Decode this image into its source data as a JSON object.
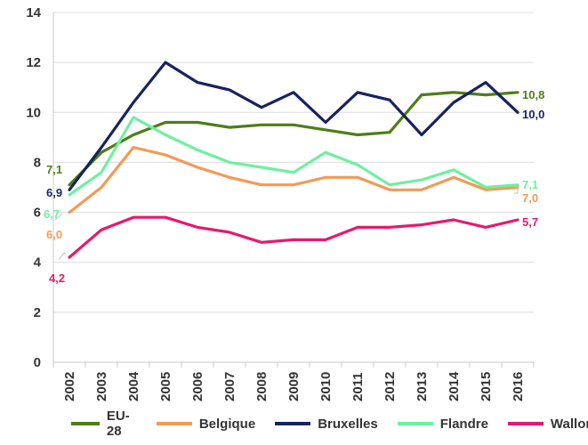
{
  "chart_data": {
    "type": "line",
    "categories": [
      "2002",
      "2003",
      "2004",
      "2005",
      "2006",
      "2007",
      "2008",
      "2009",
      "2010",
      "2011",
      "2012",
      "2013",
      "2014",
      "2015",
      "2016"
    ],
    "ylim": [
      0,
      14
    ],
    "yticks": [
      "0",
      "2",
      "4",
      "6",
      "8",
      "10",
      "12",
      "14"
    ],
    "grid": true,
    "legend_position": "bottom",
    "series": [
      {
        "name": "EU-28",
        "color": "#4e7d16",
        "values": [
          7.1,
          8.4,
          9.1,
          9.6,
          9.6,
          9.4,
          9.5,
          9.5,
          9.3,
          9.1,
          9.2,
          10.7,
          10.8,
          10.7,
          10.8
        ],
        "start_label": "7,1",
        "end_label": "10,8"
      },
      {
        "name": "Belgique",
        "color": "#f39a56",
        "values": [
          6.0,
          7.0,
          8.6,
          8.3,
          7.8,
          7.4,
          7.1,
          7.1,
          7.4,
          7.4,
          6.9,
          6.9,
          7.4,
          6.9,
          7.0
        ],
        "start_label": "6,0",
        "end_label": "7,0"
      },
      {
        "name": "Bruxelles",
        "color": "#17235f",
        "values": [
          6.9,
          8.6,
          10.4,
          12.0,
          11.2,
          10.9,
          10.2,
          10.8,
          9.6,
          10.8,
          10.5,
          9.1,
          10.4,
          11.2,
          10.0
        ],
        "start_label": "6,9",
        "end_label": "10,0"
      },
      {
        "name": "Flandre",
        "color": "#6ef0a0",
        "values": [
          6.7,
          7.6,
          9.8,
          9.1,
          8.5,
          8.0,
          7.8,
          7.6,
          8.4,
          7.9,
          7.1,
          7.3,
          7.7,
          7.0,
          7.1
        ],
        "start_label": "6,7",
        "end_label": "7,1"
      },
      {
        "name": "Wallonie",
        "color": "#e8186e",
        "values": [
          4.2,
          5.3,
          5.8,
          5.8,
          5.4,
          5.2,
          4.8,
          4.9,
          4.9,
          5.4,
          5.4,
          5.5,
          5.7,
          5.4,
          5.7
        ],
        "start_label": "4,2",
        "end_label": "5,7"
      }
    ]
  }
}
